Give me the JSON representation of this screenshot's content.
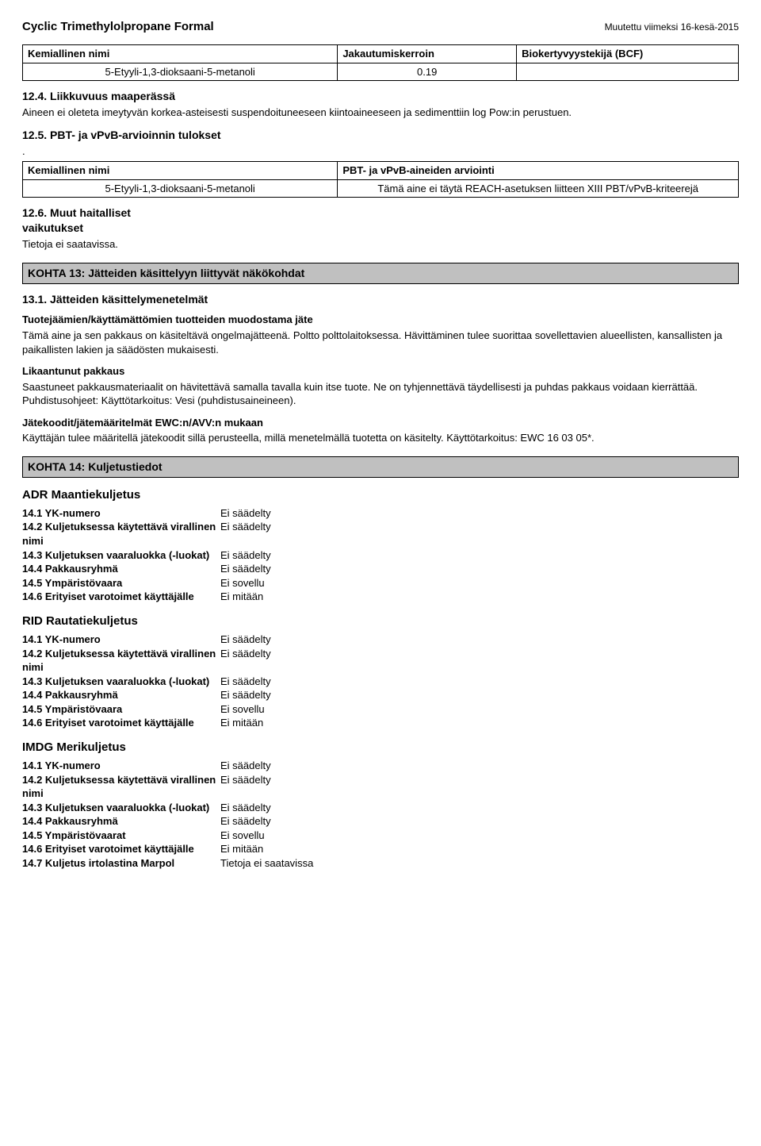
{
  "header": {
    "title": "Cyclic Trimethylolpropane Formal",
    "modified_prefix": "Muutettu viimeksi",
    "modified_date": "16-kesä-2015"
  },
  "table1": {
    "cols": [
      "Kemiallinen nimi",
      "Jakautumiskerroin",
      "Biokertyvyystekijä (BCF)"
    ],
    "row": [
      "5-Etyyli-1,3-dioksaani-5-metanoli",
      "0.19",
      ""
    ]
  },
  "sec124": {
    "title": "12.4. Liikkuvuus maaperässä",
    "text": "Aineen ei oleteta imeytyvän korkea-asteisesti suspendoituneeseen kiintoaineeseen ja sedimenttiin log Pow:in perustuen."
  },
  "sec125": {
    "title": "12.5. PBT- ja vPvB-arvioinnin tulokset",
    "dot": "."
  },
  "table2": {
    "cols": [
      "Kemiallinen nimi",
      "PBT- ja vPvB-aineiden arviointi"
    ],
    "row": [
      "5-Etyyli-1,3-dioksaani-5-metanoli",
      "Tämä aine ei täytä REACH-asetuksen liitteen XIII PBT/vPvB-kriteerejä"
    ]
  },
  "sec126": {
    "title": "12.6. Muut haitalliset vaikutukset",
    "text": "Tietoja ei saatavissa."
  },
  "kohta13": {
    "bar": "KOHTA 13: Jätteiden käsittelyyn liittyvät näkökohdat",
    "s131_title": "13.1. Jätteiden käsittelymenetelmät",
    "p1_head": "Tuotejäämien/käyttämättömien tuotteiden muodostama jäte",
    "p1_body": "Tämä aine ja sen pakkaus on käsiteltävä ongelmajätteenä. Poltto polttolaitoksessa. Hävittäminen tulee suorittaa sovellettavien alueellisten, kansallisten ja paikallisten lakien ja säädösten mukaisesti.",
    "p2_head": "Likaantunut pakkaus",
    "p2_body": "Saastuneet pakkausmateriaalit on hävitettävä samalla tavalla kuin itse tuote. Ne on tyhjennettävä täydellisesti ja puhdas pakkaus voidaan kierrättää. Puhdistusohjeet: Käyttötarkoitus: Vesi (puhdistusaineineen).",
    "p3_head": "Jätekoodit/jätemääritelmät EWC:n/AVV:n mukaan",
    "p3_body": "Käyttäjän tulee määritellä jätekoodit sillä perusteella, millä menetelmällä tuotetta on käsitelty. Käyttötarkoitus: EWC 16 03 05*."
  },
  "kohta14": {
    "bar": "KOHTA 14: Kuljetustiedot",
    "adr": {
      "title": "ADR  Maantiekuljetus",
      "rows": [
        {
          "k": "14.1 YK-numero",
          "v": "Ei säädelty"
        },
        {
          "k": "14.2 Kuljetuksessa käytettävä virallinen nimi",
          "v": "Ei säädelty"
        },
        {
          "k": "14.3 Kuljetuksen vaaraluokka (-luokat)",
          "v": "Ei säädelty"
        },
        {
          "k": "14.4 Pakkausryhmä",
          "v": "Ei säädelty"
        },
        {
          "k": "14.5 Ympäristövaara",
          "v": "Ei sovellu"
        },
        {
          "k": "14.6 Erityiset varotoimet käyttäjälle",
          "v": "Ei mitään"
        }
      ]
    },
    "rid": {
      "title": "RID  Rautatiekuljetus",
      "rows": [
        {
          "k": "14.1 YK-numero",
          "v": "Ei säädelty"
        },
        {
          "k": "14.2 Kuljetuksessa käytettävä virallinen nimi",
          "v": "Ei säädelty"
        },
        {
          "k": "14.3 Kuljetuksen vaaraluokka (-luokat)",
          "v": "Ei säädelty"
        },
        {
          "k": "14.4 Pakkausryhmä",
          "v": "Ei säädelty"
        },
        {
          "k": "14.5 Ympäristövaara",
          "v": "Ei sovellu"
        },
        {
          "k": "14.6 Erityiset varotoimet käyttäjälle",
          "v": "Ei mitään"
        }
      ]
    },
    "imdg": {
      "title": "IMDG  Merikuljetus",
      "rows": [
        {
          "k": "14.1 YK-numero",
          "v": "Ei säädelty"
        },
        {
          "k": "14.2 Kuljetuksessa käytettävä virallinen nimi",
          "v": "Ei säädelty"
        },
        {
          "k": "14.3 Kuljetuksen vaaraluokka (-luokat)",
          "v": "Ei säädelty"
        },
        {
          "k": "14.4 Pakkausryhmä",
          "v": "Ei säädelty"
        },
        {
          "k": "14.5 Ympäristövaarat",
          "v": "Ei sovellu"
        },
        {
          "k": "14.6 Erityiset varotoimet käyttäjälle",
          "v": "Ei mitään"
        },
        {
          "k": "14.7 Kuljetus irtolastina Marpol",
          "v": "Tietoja ei saatavissa"
        }
      ]
    }
  }
}
